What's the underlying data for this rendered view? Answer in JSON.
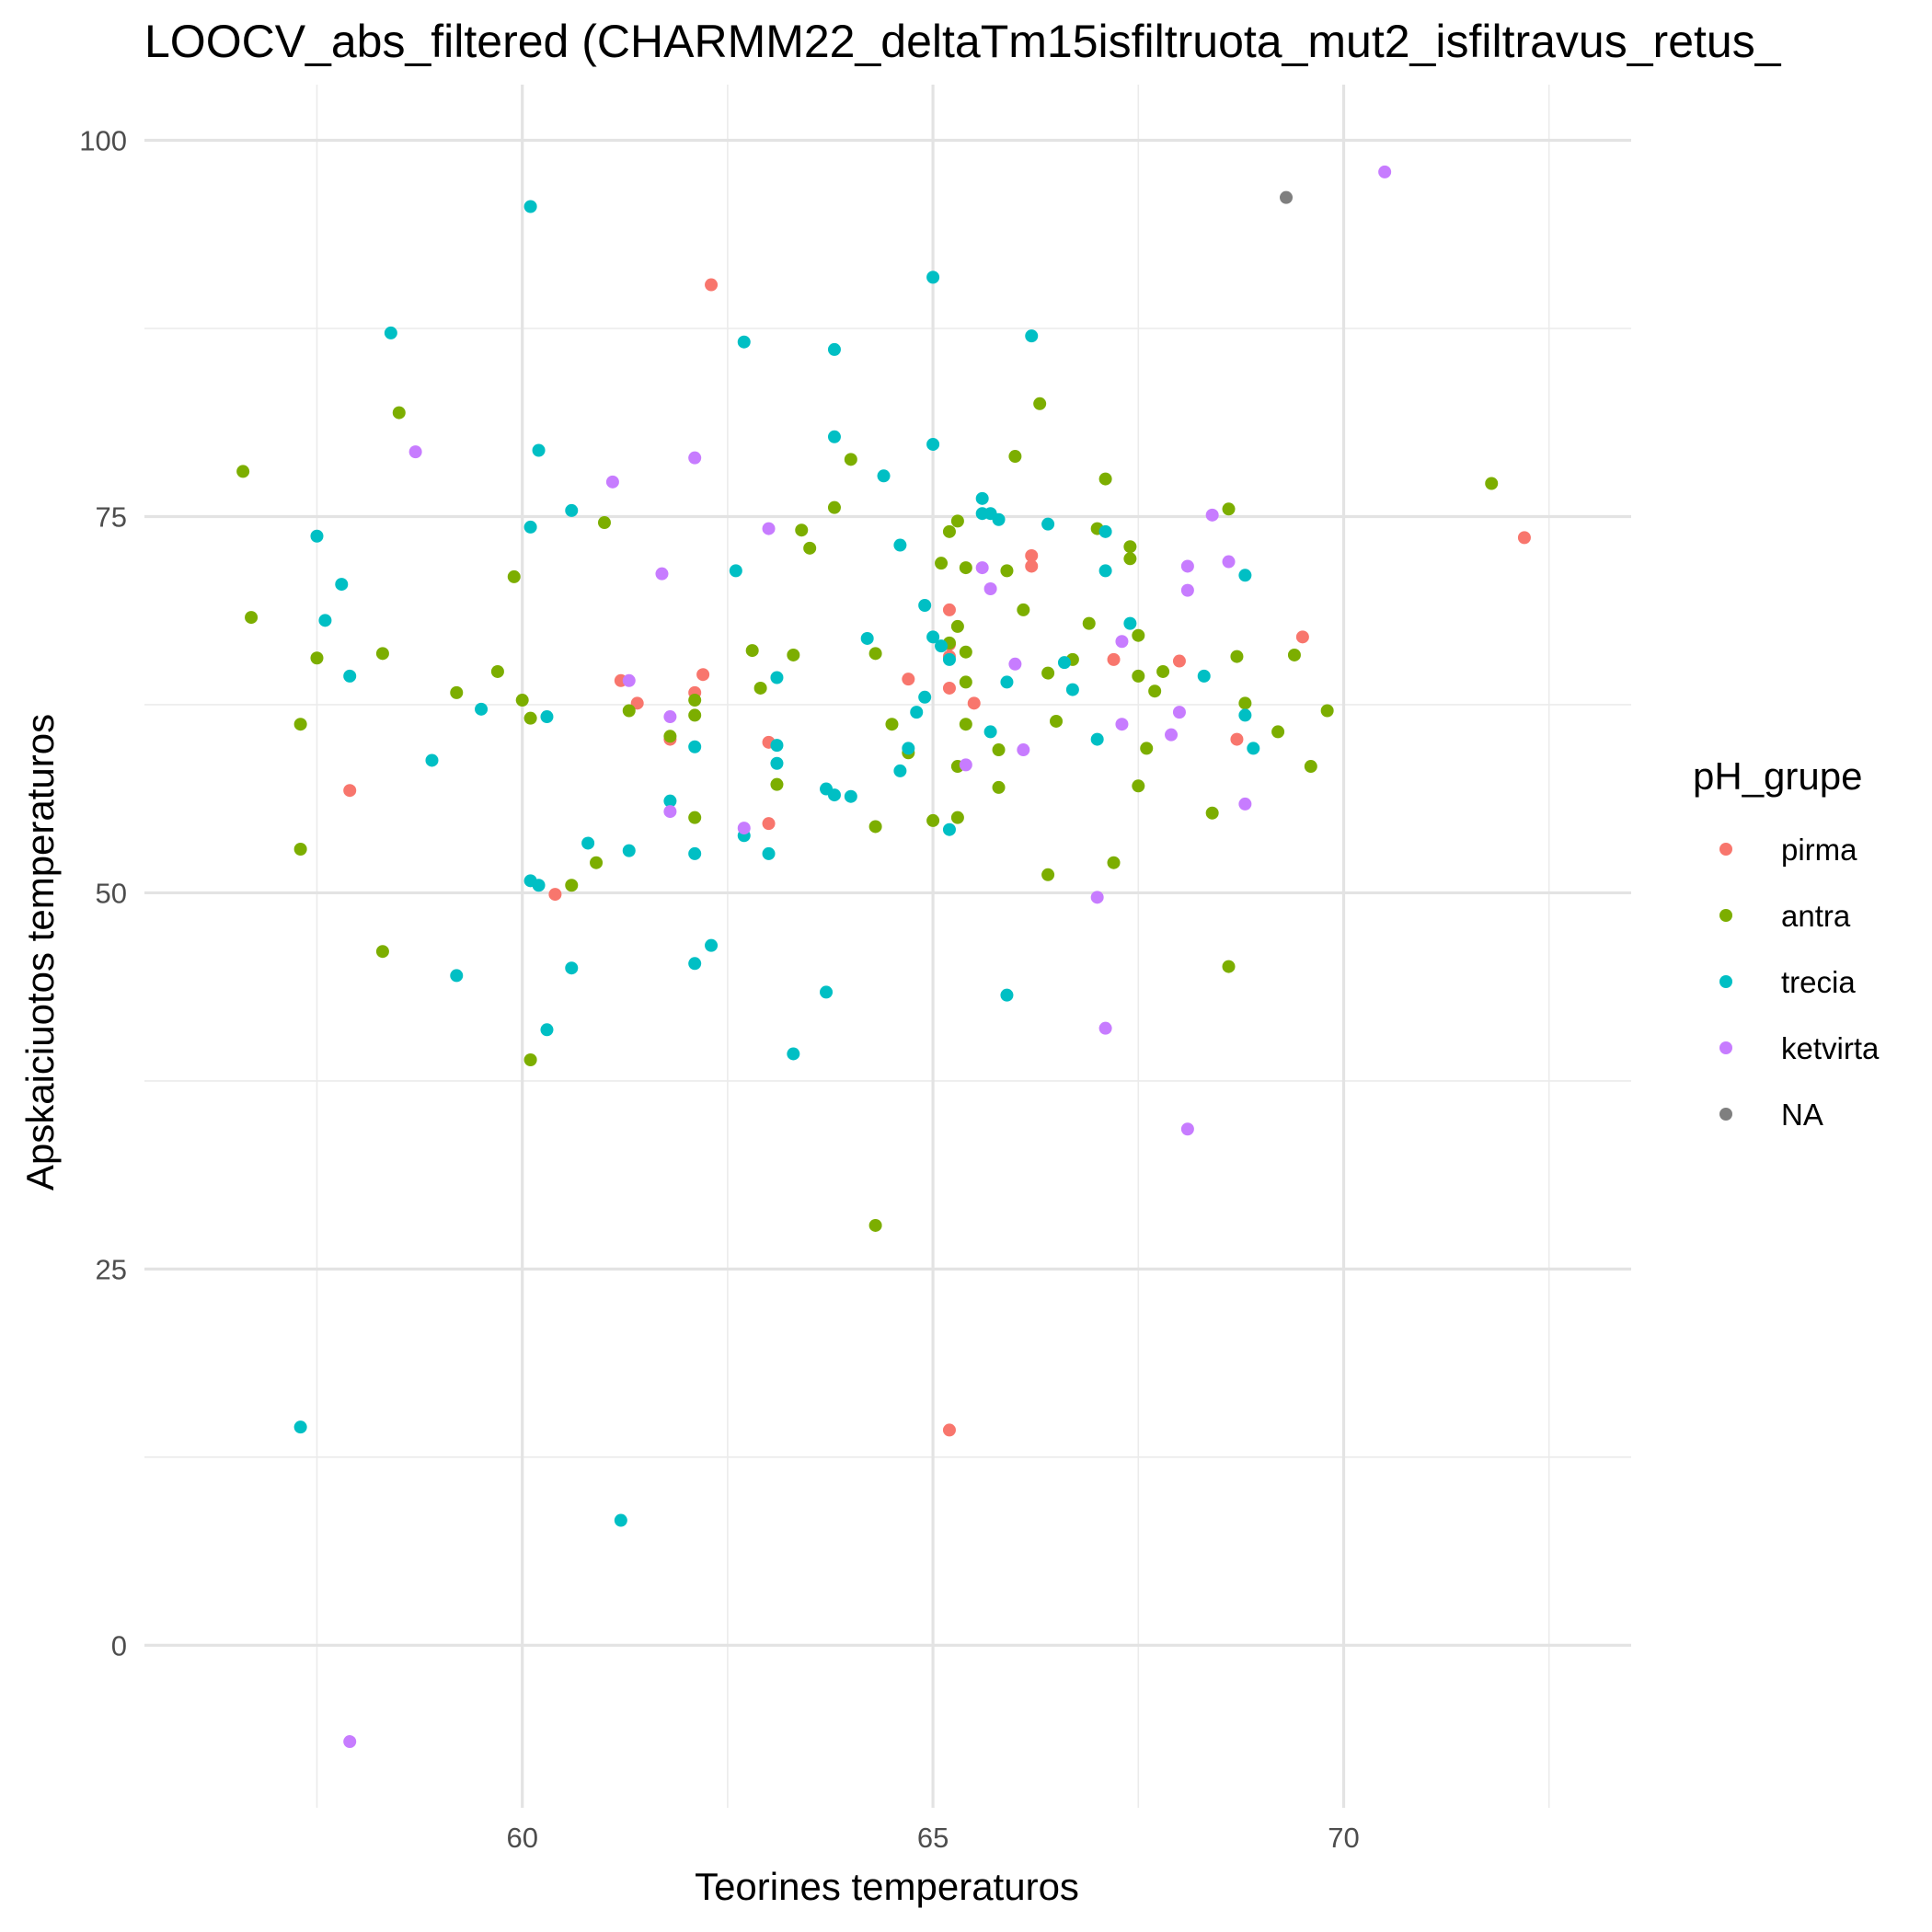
{
  "chart_data": {
    "type": "scatter",
    "title": "LOOCV_abs_filtered (CHARMM22_deltaTm15isfiltruota_mut2_isfiltravus_retus_",
    "xlabel": "Teorines temperaturos",
    "ylabel": "Apskaiciuotos temperaturos",
    "xlim": [
      55.4,
      73.5
    ],
    "ylim": [
      -10.8,
      103.7
    ],
    "x_ticks": [
      60,
      65,
      70
    ],
    "y_ticks": [
      0,
      25,
      50,
      75,
      100
    ],
    "grid": true,
    "legend": {
      "title": "pH_grupe",
      "position": "right"
    },
    "series": [
      {
        "name": "pirma",
        "color": "#F8766D",
        "points": [
          [
            57.9,
            56.8
          ],
          [
            60.4,
            49.9
          ],
          [
            61.2,
            64.1
          ],
          [
            61.4,
            62.6
          ],
          [
            61.8,
            60.2
          ],
          [
            62.1,
            63.3
          ],
          [
            62.2,
            64.5
          ],
          [
            62.3,
            90.4
          ],
          [
            63.0,
            60.0
          ],
          [
            63.0,
            54.6
          ],
          [
            64.7,
            64.2
          ],
          [
            65.2,
            68.8
          ],
          [
            65.2,
            66.5
          ],
          [
            65.2,
            65.7
          ],
          [
            65.2,
            63.6
          ],
          [
            65.2,
            14.3
          ],
          [
            65.5,
            62.6
          ],
          [
            66.2,
            72.4
          ],
          [
            66.2,
            71.7
          ],
          [
            67.2,
            65.5
          ],
          [
            68.0,
            65.4
          ],
          [
            68.7,
            60.2
          ],
          [
            69.5,
            67.0
          ],
          [
            72.2,
            73.6
          ]
        ]
      },
      {
        "name": "antra",
        "color": "#7CAE00",
        "points": [
          [
            56.6,
            78.0
          ],
          [
            56.7,
            68.3
          ],
          [
            57.3,
            61.2
          ],
          [
            57.3,
            52.9
          ],
          [
            57.5,
            65.6
          ],
          [
            58.3,
            65.9
          ],
          [
            58.3,
            46.1
          ],
          [
            58.5,
            81.9
          ],
          [
            59.2,
            63.3
          ],
          [
            59.7,
            64.7
          ],
          [
            59.9,
            71.0
          ],
          [
            60.0,
            62.8
          ],
          [
            60.1,
            61.6
          ],
          [
            60.1,
            38.9
          ],
          [
            60.6,
            50.5
          ],
          [
            60.9,
            52.0
          ],
          [
            61.0,
            74.6
          ],
          [
            61.3,
            62.1
          ],
          [
            61.8,
            60.4
          ],
          [
            62.1,
            62.8
          ],
          [
            62.1,
            61.8
          ],
          [
            62.1,
            55.0
          ],
          [
            62.8,
            66.1
          ],
          [
            62.9,
            63.6
          ],
          [
            63.1,
            57.2
          ],
          [
            63.3,
            65.8
          ],
          [
            63.4,
            74.1
          ],
          [
            63.5,
            72.9
          ],
          [
            63.8,
            75.6
          ],
          [
            64.0,
            78.8
          ],
          [
            64.3,
            65.9
          ],
          [
            64.3,
            54.4
          ],
          [
            64.3,
            27.9
          ],
          [
            64.5,
            61.2
          ],
          [
            64.7,
            59.3
          ],
          [
            65.0,
            54.8
          ],
          [
            65.1,
            71.9
          ],
          [
            65.2,
            66.6
          ],
          [
            65.2,
            74.0
          ],
          [
            65.3,
            74.7
          ],
          [
            65.3,
            67.7
          ],
          [
            65.3,
            58.4
          ],
          [
            65.3,
            55.0
          ],
          [
            65.4,
            64.0
          ],
          [
            65.4,
            61.2
          ],
          [
            65.4,
            66.0
          ],
          [
            65.4,
            71.6
          ],
          [
            65.8,
            57.0
          ],
          [
            65.8,
            59.5
          ],
          [
            65.9,
            71.4
          ],
          [
            66.0,
            79.0
          ],
          [
            66.1,
            68.8
          ],
          [
            66.3,
            82.5
          ],
          [
            66.4,
            64.6
          ],
          [
            66.4,
            51.2
          ],
          [
            66.5,
            61.4
          ],
          [
            66.7,
            65.5
          ],
          [
            66.9,
            67.9
          ],
          [
            67.0,
            74.2
          ],
          [
            67.1,
            77.5
          ],
          [
            67.2,
            52.0
          ],
          [
            67.4,
            73.0
          ],
          [
            67.4,
            72.2
          ],
          [
            67.5,
            67.1
          ],
          [
            67.5,
            57.1
          ],
          [
            67.5,
            64.4
          ],
          [
            67.6,
            59.6
          ],
          [
            67.7,
            63.4
          ],
          [
            67.8,
            64.7
          ],
          [
            68.4,
            55.3
          ],
          [
            68.6,
            75.5
          ],
          [
            68.6,
            45.1
          ],
          [
            68.7,
            65.7
          ],
          [
            68.8,
            62.6
          ],
          [
            69.2,
            60.7
          ],
          [
            69.4,
            65.8
          ],
          [
            69.6,
            58.4
          ],
          [
            69.8,
            62.1
          ],
          [
            71.8,
            77.2
          ]
        ]
      },
      {
        "name": "trecia",
        "color": "#00BFC4",
        "points": [
          [
            57.3,
            14.5
          ],
          [
            57.5,
            73.7
          ],
          [
            57.6,
            68.1
          ],
          [
            57.8,
            70.5
          ],
          [
            57.9,
            64.4
          ],
          [
            58.4,
            87.2
          ],
          [
            58.9,
            58.8
          ],
          [
            59.2,
            44.5
          ],
          [
            59.5,
            62.2
          ],
          [
            60.1,
            95.6
          ],
          [
            60.1,
            74.3
          ],
          [
            60.1,
            50.8
          ],
          [
            60.2,
            79.4
          ],
          [
            60.2,
            50.5
          ],
          [
            60.3,
            61.7
          ],
          [
            60.3,
            40.9
          ],
          [
            60.6,
            75.4
          ],
          [
            60.6,
            45.0
          ],
          [
            60.8,
            53.3
          ],
          [
            61.2,
            8.3
          ],
          [
            61.3,
            52.8
          ],
          [
            61.8,
            56.1
          ],
          [
            62.1,
            59.7
          ],
          [
            62.1,
            52.6
          ],
          [
            62.1,
            45.3
          ],
          [
            62.3,
            46.5
          ],
          [
            62.6,
            71.4
          ],
          [
            62.7,
            86.6
          ],
          [
            62.7,
            53.8
          ],
          [
            63.0,
            52.6
          ],
          [
            63.1,
            64.3
          ],
          [
            63.1,
            59.8
          ],
          [
            63.1,
            58.6
          ],
          [
            63.3,
            39.3
          ],
          [
            63.7,
            56.9
          ],
          [
            63.7,
            43.4
          ],
          [
            63.8,
            86.1
          ],
          [
            63.8,
            80.3
          ],
          [
            63.8,
            56.5
          ],
          [
            64.0,
            56.4
          ],
          [
            64.4,
            77.7
          ],
          [
            64.2,
            66.9
          ],
          [
            64.6,
            73.1
          ],
          [
            64.6,
            58.1
          ],
          [
            64.7,
            59.6
          ],
          [
            64.8,
            62.0
          ],
          [
            64.9,
            69.1
          ],
          [
            64.9,
            63.0
          ],
          [
            65.0,
            67.0
          ],
          [
            65.0,
            79.8
          ],
          [
            65.0,
            90.9
          ],
          [
            65.1,
            66.4
          ],
          [
            65.2,
            65.5
          ],
          [
            65.2,
            54.2
          ],
          [
            65.6,
            76.2
          ],
          [
            65.6,
            75.2
          ],
          [
            65.7,
            75.2
          ],
          [
            65.7,
            60.7
          ],
          [
            65.8,
            74.8
          ],
          [
            65.9,
            64.0
          ],
          [
            65.9,
            43.2
          ],
          [
            66.2,
            87.0
          ],
          [
            66.4,
            74.5
          ],
          [
            66.6,
            65.3
          ],
          [
            66.7,
            63.5
          ],
          [
            67.0,
            60.2
          ],
          [
            67.1,
            74.0
          ],
          [
            67.1,
            71.4
          ],
          [
            67.4,
            67.9
          ],
          [
            68.3,
            64.4
          ],
          [
            68.8,
            71.1
          ],
          [
            68.8,
            61.8
          ],
          [
            68.9,
            59.6
          ]
        ]
      },
      {
        "name": "ketvirta",
        "color": "#C77CFF",
        "points": [
          [
            57.9,
            -6.4
          ],
          [
            58.7,
            79.3
          ],
          [
            61.1,
            77.3
          ],
          [
            61.3,
            64.1
          ],
          [
            61.7,
            71.2
          ],
          [
            61.8,
            61.7
          ],
          [
            61.8,
            55.4
          ],
          [
            62.1,
            78.9
          ],
          [
            62.7,
            54.3
          ],
          [
            63.0,
            74.2
          ],
          [
            65.4,
            58.5
          ],
          [
            65.6,
            71.6
          ],
          [
            65.7,
            70.2
          ],
          [
            66.0,
            65.2
          ],
          [
            66.1,
            59.5
          ],
          [
            67.0,
            49.7
          ],
          [
            67.1,
            41.0
          ],
          [
            67.3,
            61.2
          ],
          [
            67.3,
            66.7
          ],
          [
            67.9,
            60.5
          ],
          [
            68.0,
            62.0
          ],
          [
            68.1,
            70.1
          ],
          [
            68.1,
            71.7
          ],
          [
            68.1,
            34.3
          ],
          [
            68.4,
            75.1
          ],
          [
            68.6,
            72.0
          ],
          [
            68.8,
            55.9
          ],
          [
            70.5,
            97.9
          ]
        ]
      },
      {
        "name": "NA",
        "color": "#7F7F7F",
        "points": [
          [
            69.3,
            96.2
          ]
        ]
      }
    ]
  }
}
